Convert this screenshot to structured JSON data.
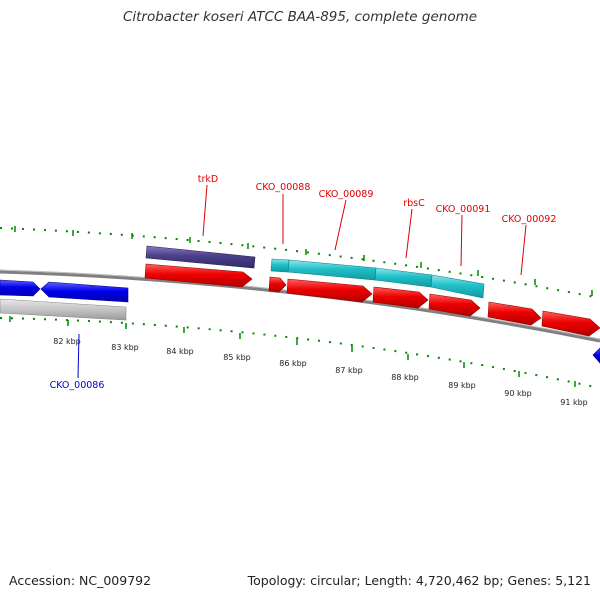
{
  "title": "Citrobacter koseri ATCC BAA-895, complete genome",
  "footer": {
    "accession": "Accession: NC_009792",
    "summary": "Topology: circular; Length: 4,720,462 bp; Genes: 5,121"
  },
  "colors": {
    "forward_cds": "#ee0000",
    "reverse_cds": "#0000ee",
    "trk_gene": "#4a4088",
    "rbs_operon": "#20c0c8",
    "grey_feature": "#c0c0c0",
    "backbone": "#808080",
    "tick": "#008800",
    "label_red": "#dd0000",
    "label_blue": "#0000cc"
  },
  "scale": {
    "labels": [
      "82 kbp",
      "83 kbp",
      "84 kbp",
      "85 kbp",
      "86 kbp",
      "87 kbp",
      "88 kbp",
      "89 kbp",
      "90 kbp",
      "91 kbp"
    ]
  },
  "gene_labels": [
    {
      "text": "trkD",
      "color": "label_red"
    },
    {
      "text": "CKO_00088",
      "color": "label_red"
    },
    {
      "text": "CKO_00089",
      "color": "label_red"
    },
    {
      "text": "rbsC",
      "color": "label_red"
    },
    {
      "text": "CKO_00091",
      "color": "label_red"
    },
    {
      "text": "CKO_00092",
      "color": "label_red"
    },
    {
      "text": "CKO_00086",
      "color": "label_blue"
    }
  ]
}
